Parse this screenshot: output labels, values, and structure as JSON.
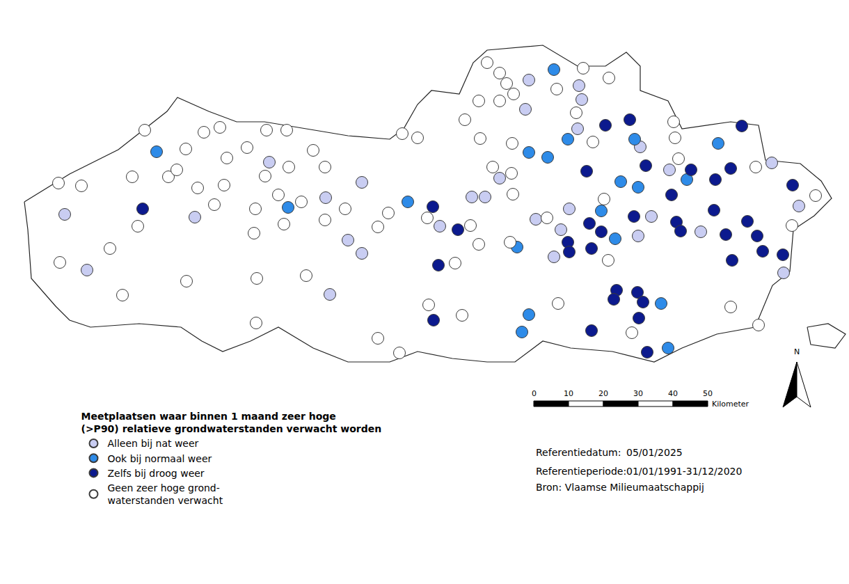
{
  "chart_data": {
    "type": "scatter",
    "marker": "circle",
    "tick_labels": false,
    "grid": false,
    "legend": "bottom left",
    "legend_title": "Meetplaatsen waar binnen 1 maand zeer hoge\n(>P90) relatieve grondwaterstanden verwacht worden",
    "xlim": [
      0,
      238
    ],
    "ylim": [
      -20,
      96
    ],
    "outline": [
      [
        [
          1,
          50
        ],
        [
          14,
          58
        ],
        [
          28,
          65
        ],
        [
          42,
          76
        ],
        [
          45,
          80
        ],
        [
          54,
          76
        ],
        [
          62,
          73
        ],
        [
          70,
          73
        ],
        [
          82,
          71
        ],
        [
          94,
          69
        ],
        [
          106,
          68
        ],
        [
          110,
          71
        ],
        [
          114,
          78
        ],
        [
          118,
          82
        ],
        [
          126,
          81
        ],
        [
          130,
          90
        ],
        [
          134,
          93.6
        ],
        [
          150,
          95
        ],
        [
          160,
          89
        ],
        [
          168,
          89
        ],
        [
          174,
          93
        ],
        [
          178,
          89
        ],
        [
          178,
          82
        ],
        [
          186,
          79
        ],
        [
          190,
          71
        ],
        [
          204,
          73
        ],
        [
          212,
          72
        ],
        [
          214,
          62
        ],
        [
          224,
          61
        ],
        [
          230,
          56
        ],
        [
          233,
          51
        ],
        [
          228,
          46
        ],
        [
          222,
          42
        ],
        [
          221,
          30
        ],
        [
          216,
          26
        ],
        [
          211,
          14
        ],
        [
          200,
          12
        ],
        [
          190,
          8
        ],
        [
          182,
          4
        ],
        [
          170,
          7
        ],
        [
          158,
          8
        ],
        [
          150,
          10
        ],
        [
          142,
          4
        ],
        [
          134,
          4
        ],
        [
          124,
          5
        ],
        [
          114,
          7
        ],
        [
          106,
          4
        ],
        [
          94,
          4
        ],
        [
          84,
          8
        ],
        [
          74,
          14
        ],
        [
          66,
          10
        ],
        [
          58,
          7
        ],
        [
          52,
          10
        ],
        [
          46,
          14
        ],
        [
          34,
          15
        ],
        [
          20,
          14
        ],
        [
          14,
          16
        ],
        [
          10,
          20
        ],
        [
          3,
          28
        ],
        [
          2,
          42
        ]
      ],
      [
        [
          226,
          14
        ],
        [
          232,
          15
        ],
        [
          237,
          12
        ],
        [
          234,
          8
        ],
        [
          227,
          9
        ]
      ]
    ],
    "series": [
      {
        "name": "Alleen bij nat weer",
        "color": "#c9cdf2",
        "x": [
          146,
          160.4,
          161.2,
          145,
          160,
          178,
          71.4,
          98,
          87.6,
          12.6,
          50,
          94,
          98,
          19,
          88.8,
          120.4,
          129.6,
          133.4,
          137.6,
          148,
          157.6,
          155.2,
          153.2,
          186.4,
          215.8,
          223.6,
          181.2,
          177.4,
          195.4,
          219.2
        ],
        "y": [
          85,
          83.4,
          79.4,
          76.6,
          71,
          65.8,
          61.4,
          55.6,
          51.2,
          46.4,
          45.6,
          39,
          35.2,
          30.4,
          23.4,
          43,
          51.4,
          51.4,
          56.8,
          45,
          48,
          42,
          34.2,
          59.2,
          61.2,
          48.8,
          45.8,
          40.2,
          41.4,
          29.6
        ]
      },
      {
        "name": "Ook bij normaal weer",
        "color": "#2e8be8",
        "x": [
          153.2,
          176.4,
          200.4,
          146,
          151.4,
          157.2,
          39,
          76.8,
          111.2,
          142.6,
          146,
          144,
          172.4,
          177.4,
          191.4,
          166.8,
          170.8,
          184,
          186
        ],
        "y": [
          88,
          68,
          66.8,
          64.2,
          62.8,
          68,
          64.4,
          48.4,
          50,
          37,
          17.6,
          12.6,
          55.8,
          54.2,
          56.4,
          47.4,
          39.4,
          20.8,
          8
        ]
      },
      {
        "name": "Zelfs bij droog weer",
        "color": "#0c1a8e",
        "x": [
          168,
          175,
          207.2,
          35,
          118.4,
          125.6,
          120,
          118.6,
          162.6,
          179.6,
          192.6,
          187,
          199.6,
          204,
          221.8,
          176.2,
          163.4,
          166.8,
          188.4,
          189.6,
          199.2,
          202.6,
          208.8,
          211.6,
          157.2,
          157.6,
          164,
          204.4,
          213.2,
          219,
          171.2,
          170.4,
          177.2,
          178.8,
          177.6,
          164,
          180
        ],
        "y": [
          72,
          73.6,
          71.8,
          48,
          48.6,
          42,
          31.8,
          16,
          58.8,
          60.4,
          59.2,
          52,
          56.4,
          59.6,
          54.8,
          45.8,
          43.8,
          41.4,
          44.2,
          41.6,
          47.6,
          40.6,
          44.4,
          40.2,
          38.4,
          35.6,
          36.6,
          33.2,
          35.8,
          34.8,
          24.6,
          22,
          24,
          21.2,
          16.6,
          13,
          6.8
        ]
      },
      {
        "name": "Geen zeer hoge grond-\nwaterstanden verwacht",
        "color": "#ffffff",
        "x": [
          134,
          137.6,
          139.6,
          141.6,
          154,
          161.6,
          169,
          131.6,
          137.6,
          159.6,
          164.4,
          187.6,
          188,
          141.2,
          127.6,
          109.6,
          114,
          132,
          35.6,
          52.6,
          57.2,
          70.6,
          76.4,
          47.4,
          65,
          84,
          59.2,
          77,
          87.4,
          10.8,
          17.4,
          32,
          42.4,
          44.8,
          50.8,
          58.4,
          70.2,
          74,
          55.6,
          33.6,
          67.4,
          80.6,
          75.6,
          67,
          87.4,
          93.2,
          105.6,
          102.6,
          25.6,
          11.2,
          29.2,
          47.6,
          67.8,
          82,
          67.6,
          102.6,
          108.8,
          116.8,
          129.2,
          141.4,
          135.6,
          141,
          151.2,
          124.8,
          131.6,
          140.6,
          117.2,
          126.8,
          154.4,
          189,
          211.2,
          228.4,
          167.6,
          221.6,
          168.8,
          204,
          212,
          175.6
        ],
        "y": [
          90,
          87,
          84,
          81,
          82.4,
          88.4,
          85.6,
          79,
          79,
          75.6,
          67.2,
          73,
          68.4,
          66.8,
          73.6,
          69.6,
          68.4,
          68.2,
          70.6,
          70,
          71.4,
          70.6,
          70.6,
          65.2,
          65.6,
          64.8,
          62.6,
          60,
          60,
          55.4,
          54.6,
          57.2,
          57.2,
          59.2,
          54,
          54.8,
          57.4,
          52,
          49.2,
          43,
          48,
          50,
          43.6,
          41,
          44.8,
          48,
          46.8,
          42.8,
          36.6,
          32.6,
          23.2,
          27.2,
          28,
          28.8,
          15.2,
          10.8,
          6.6,
          45.4,
          43.2,
          52.2,
          60,
          58.2,
          45.4,
          32.4,
          37.8,
          38.4,
          20.4,
          17.4,
          20.8,
          62.4,
          60,
          51.8,
          50.8,
          43.2,
          33.2,
          19.8,
          14.6,
          12.4
        ]
      }
    ],
    "scale_bar": {
      "ticks": [
        0,
        10,
        20,
        30,
        40,
        50
      ],
      "label": "Kilometer"
    },
    "north_label": "N",
    "notes": [
      {
        "label": "Referentiedatum:",
        "value": "05/01/2025"
      },
      {
        "label": "Referentieperiode:",
        "value": "01/01/1991-31/12/2020"
      },
      {
        "label": "Bron: Vlaamse Milieumaatschappij",
        "value": null
      }
    ]
  }
}
